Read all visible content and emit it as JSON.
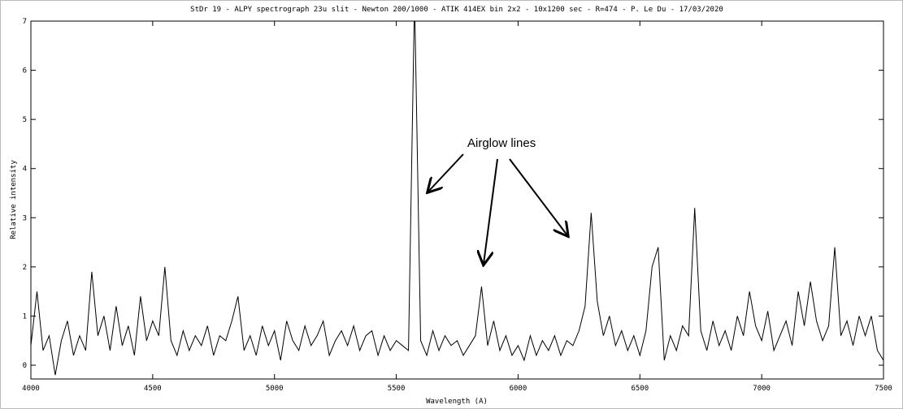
{
  "chart_data": {
    "type": "line",
    "title": "StDr 19 - ALPY spectrograph 23u slit - Newton 200/1000 - ATIK 414EX bin 2x2 - 10x1200 sec - R=474 - P. Le Du - 17/03/2020",
    "xlabel": "Wavelength (A)",
    "ylabel": "Relative intensity",
    "annotation": "Airglow lines",
    "color": "#000000",
    "xlim": [
      4000,
      7500
    ],
    "ylim": [
      -0.28,
      7
    ],
    "xticks": [
      4000,
      4500,
      5000,
      5500,
      6000,
      6500,
      7000,
      7500
    ],
    "yticks": [
      0,
      1,
      2,
      3,
      4,
      5,
      6,
      7
    ],
    "x": [
      4000,
      4025,
      4050,
      4075,
      4100,
      4125,
      4150,
      4175,
      4200,
      4225,
      4250,
      4275,
      4300,
      4325,
      4350,
      4375,
      4400,
      4425,
      4450,
      4475,
      4500,
      4525,
      4550,
      4575,
      4600,
      4625,
      4650,
      4675,
      4700,
      4725,
      4750,
      4775,
      4800,
      4825,
      4850,
      4875,
      4900,
      4925,
      4950,
      4975,
      5000,
      5025,
      5050,
      5075,
      5100,
      5125,
      5150,
      5175,
      5200,
      5225,
      5250,
      5275,
      5300,
      5325,
      5350,
      5375,
      5400,
      5425,
      5450,
      5475,
      5500,
      5525,
      5550,
      5575,
      5600,
      5625,
      5650,
      5675,
      5700,
      5725,
      5750,
      5775,
      5800,
      5825,
      5850,
      5875,
      5900,
      5925,
      5950,
      5975,
      6000,
      6025,
      6050,
      6075,
      6100,
      6125,
      6150,
      6175,
      6200,
      6225,
      6250,
      6275,
      6300,
      6325,
      6350,
      6375,
      6400,
      6425,
      6450,
      6475,
      6500,
      6525,
      6550,
      6575,
      6600,
      6625,
      6650,
      6675,
      6700,
      6725,
      6750,
      6775,
      6800,
      6825,
      6850,
      6875,
      6900,
      6925,
      6950,
      6975,
      7000,
      7025,
      7050,
      7075,
      7100,
      7125,
      7150,
      7175,
      7200,
      7225,
      7250,
      7275,
      7300,
      7325,
      7350,
      7375,
      7400,
      7425,
      7450,
      7475,
      7500
    ],
    "values": [
      0.4,
      1.5,
      0.3,
      0.6,
      -0.2,
      0.5,
      0.9,
      0.2,
      0.6,
      0.3,
      1.9,
      0.6,
      1.0,
      0.3,
      1.2,
      0.4,
      0.8,
      0.2,
      1.4,
      0.5,
      0.9,
      0.6,
      2.0,
      0.5,
      0.2,
      0.7,
      0.3,
      0.6,
      0.4,
      0.8,
      0.2,
      0.6,
      0.5,
      0.9,
      1.4,
      0.3,
      0.6,
      0.2,
      0.8,
      0.4,
      0.7,
      0.1,
      0.9,
      0.5,
      0.3,
      0.8,
      0.4,
      0.6,
      0.9,
      0.2,
      0.5,
      0.7,
      0.4,
      0.8,
      0.3,
      0.6,
      0.7,
      0.2,
      0.6,
      0.3,
      0.5,
      0.4,
      0.3,
      7.5,
      0.5,
      0.2,
      0.7,
      0.3,
      0.6,
      0.4,
      0.5,
      0.2,
      0.4,
      0.6,
      1.6,
      0.4,
      0.9,
      0.3,
      0.6,
      0.2,
      0.4,
      0.1,
      0.6,
      0.2,
      0.5,
      0.3,
      0.6,
      0.2,
      0.5,
      0.4,
      0.7,
      1.2,
      3.1,
      1.3,
      0.6,
      1.0,
      0.4,
      0.7,
      0.3,
      0.6,
      0.2,
      0.7,
      2.0,
      2.4,
      0.1,
      0.6,
      0.3,
      0.8,
      0.6,
      3.2,
      0.7,
      0.3,
      0.9,
      0.4,
      0.7,
      0.3,
      1.0,
      0.6,
      1.5,
      0.8,
      0.5,
      1.1,
      0.3,
      0.6,
      0.9,
      0.4,
      1.5,
      0.8,
      1.7,
      0.9,
      0.5,
      0.8,
      2.4,
      0.6,
      0.9,
      0.4,
      1.0,
      0.6,
      1.0,
      0.3,
      0.1
    ]
  }
}
